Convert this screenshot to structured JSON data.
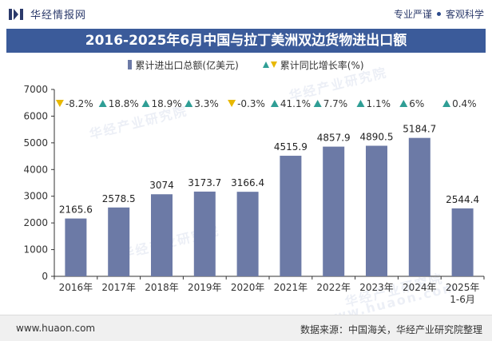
{
  "header": {
    "brand_name": "华经情报网",
    "tagline_left": "专业严谨",
    "tagline_right": "客观科学"
  },
  "footer": {
    "site": "www.huaon.com",
    "source": "数据来源：中国海关，华经产业研究院整理"
  },
  "watermarks": [
    "华经产业研究院",
    "www.huaon.com"
  ],
  "colors": {
    "bar": "#6c7aa6",
    "up": "#2f9e95",
    "down": "#e8b800",
    "title_bg": "#3b5b9a"
  },
  "chart_data": {
    "type": "bar",
    "title": "2016-2025年6月中国与拉丁美洲双边货物进出口额",
    "categories": [
      "2016年",
      "2017年",
      "2018年",
      "2019年",
      "2020年",
      "2021年",
      "2022年",
      "2023年",
      "2024年",
      "2025年 1-6月"
    ],
    "series": [
      {
        "name": "累计进出口总额(亿美元)",
        "values": [
          2165.6,
          2578.5,
          3074,
          3173.7,
          3166.4,
          4515.9,
          4857.9,
          4890.5,
          5184.7,
          2544.4
        ]
      },
      {
        "name": "累计同比增长率(%)",
        "values": [
          -8.2,
          18.8,
          18.9,
          3.3,
          -0.3,
          41.1,
          7.7,
          1.1,
          6,
          0.4
        ]
      }
    ],
    "value_labels": [
      "2165.6",
      "2578.5",
      "3074",
      "3173.7",
      "3166.4",
      "4515.9",
      "4857.9",
      "4890.5",
      "5184.7",
      "2544.4"
    ],
    "growth_labels": [
      "-8.2%",
      "18.8%",
      "18.9%",
      "3.3%",
      "-0.3%",
      "41.1%",
      "7.7%",
      "1.1%",
      "6%",
      "0.4%"
    ],
    "ylim": [
      0,
      7000
    ],
    "yticks": [
      "0",
      "1000",
      "2000",
      "3000",
      "4000",
      "5000",
      "6000",
      "7000"
    ],
    "legend_position": "top-center",
    "grid": false
  }
}
